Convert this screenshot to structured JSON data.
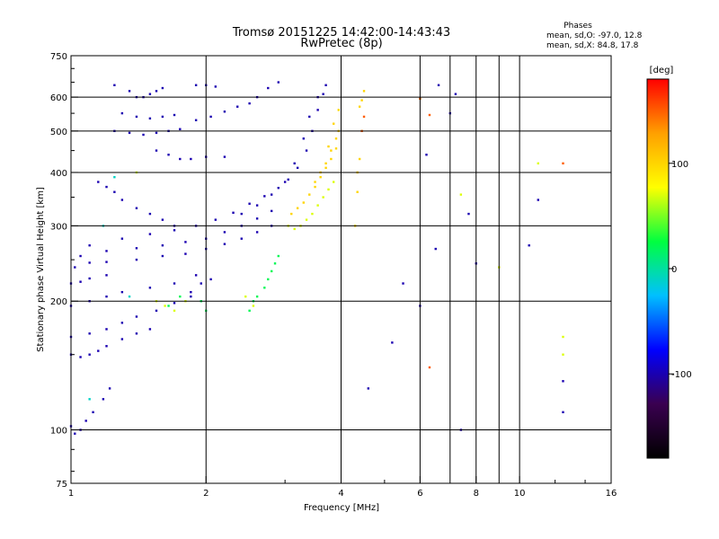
{
  "chart_data": {
    "type": "scatter",
    "title": "Tromsø 20151225 14:42:00-14:43:43",
    "subtitle": "RwPretec (8p)",
    "info": {
      "heading": "Phases",
      "line1": "mean, sd,O:  -97.0, 12.8",
      "line2": "mean, sd,X:  84.8, 17.8"
    },
    "xlabel": "Frequency [MHz]",
    "ylabel": "Stationary phase Virtual Height [km]",
    "x_scale": "log",
    "y_scale": "log",
    "xlim": [
      1,
      16
    ],
    "ylim": [
      75,
      750
    ],
    "x_ticks": [
      {
        "value": 1,
        "label": "1"
      },
      {
        "value": 2,
        "label": "2"
      },
      {
        "value": 4,
        "label": "4"
      },
      {
        "value": 6,
        "label": "6"
      },
      {
        "value": 8,
        "label": "8"
      },
      {
        "value": 10,
        "label": "10"
      },
      {
        "value": 16,
        "label": "16"
      }
    ],
    "x_gridlines": [
      2,
      4,
      6,
      7,
      8,
      9,
      10
    ],
    "y_ticks": [
      {
        "value": 75,
        "label": "75"
      },
      {
        "value": 100,
        "label": "100"
      },
      {
        "value": 200,
        "label": "200"
      },
      {
        "value": 300,
        "label": "300"
      },
      {
        "value": 400,
        "label": "400"
      },
      {
        "value": 500,
        "label": "500"
      },
      {
        "value": 600,
        "label": "600"
      },
      {
        "value": 750,
        "label": "750"
      }
    ],
    "y_gridlines": [
      100,
      200,
      300,
      400,
      500,
      600
    ],
    "grid": true,
    "colorbar": {
      "label": "[deg]",
      "range": [
        -180,
        180
      ],
      "ticks": [
        {
          "value": 100,
          "label": "100"
        },
        {
          "value": 0,
          "label": "0"
        },
        {
          "value": -100,
          "label": "-100"
        }
      ],
      "colors": [
        "#000000",
        "#3a0050",
        "#0000ff",
        "#00c0ff",
        "#00ff40",
        "#ffff00",
        "#ffa000",
        "#ff0000"
      ]
    },
    "series": [
      {
        "phase": -100,
        "points": [
          [
            1.0,
            102
          ],
          [
            1.02,
            98
          ],
          [
            1.05,
            100
          ],
          [
            1.08,
            105
          ],
          [
            1.12,
            110
          ],
          [
            1.18,
            118
          ],
          [
            1.22,
            125
          ],
          [
            1.0,
            150
          ],
          [
            1.05,
            148
          ],
          [
            1.1,
            150
          ],
          [
            1.15,
            153
          ],
          [
            1.2,
            157
          ],
          [
            1.3,
            163
          ],
          [
            1.4,
            168
          ],
          [
            1.5,
            172
          ],
          [
            1.0,
            165
          ],
          [
            1.1,
            168
          ],
          [
            1.2,
            172
          ],
          [
            1.3,
            178
          ],
          [
            1.4,
            184
          ],
          [
            1.55,
            190
          ],
          [
            1.7,
            198
          ],
          [
            1.85,
            205
          ],
          [
            1.0,
            195
          ],
          [
            1.1,
            200
          ],
          [
            1.2,
            205
          ],
          [
            1.3,
            210
          ],
          [
            1.5,
            215
          ],
          [
            1.7,
            220
          ],
          [
            1.9,
            230
          ],
          [
            1.0,
            220
          ],
          [
            1.05,
            222
          ],
          [
            1.1,
            226
          ],
          [
            1.2,
            230
          ],
          [
            1.02,
            240
          ],
          [
            1.1,
            246
          ],
          [
            1.2,
            247
          ],
          [
            1.4,
            250
          ],
          [
            1.6,
            255
          ],
          [
            1.8,
            258
          ],
          [
            2.0,
            265
          ],
          [
            2.2,
            272
          ],
          [
            2.4,
            280
          ],
          [
            2.6,
            290
          ],
          [
            2.8,
            300
          ],
          [
            1.05,
            255
          ],
          [
            1.2,
            262
          ],
          [
            1.4,
            266
          ],
          [
            1.6,
            270
          ],
          [
            1.8,
            275
          ],
          [
            2.0,
            280
          ],
          [
            2.2,
            290
          ],
          [
            2.4,
            300
          ],
          [
            2.6,
            312
          ],
          [
            2.8,
            325
          ],
          [
            1.1,
            270
          ],
          [
            1.3,
            280
          ],
          [
            1.5,
            287
          ],
          [
            1.7,
            293
          ],
          [
            1.9,
            300
          ],
          [
            2.1,
            310
          ],
          [
            2.3,
            322
          ],
          [
            2.5,
            338
          ],
          [
            2.7,
            352
          ],
          [
            2.9,
            368
          ],
          [
            3.05,
            385
          ],
          [
            3.2,
            410
          ],
          [
            3.35,
            450
          ],
          [
            3.45,
            500
          ],
          [
            3.55,
            560
          ],
          [
            3.65,
            610
          ],
          [
            3.7,
            640
          ],
          [
            2.4,
            320
          ],
          [
            2.6,
            335
          ],
          [
            2.8,
            355
          ],
          [
            3.0,
            380
          ],
          [
            3.15,
            420
          ],
          [
            3.3,
            480
          ],
          [
            3.4,
            540
          ],
          [
            3.55,
            600
          ],
          [
            1.15,
            380
          ],
          [
            1.2,
            370
          ],
          [
            1.25,
            360
          ],
          [
            1.3,
            345
          ],
          [
            1.4,
            330
          ],
          [
            1.5,
            320
          ],
          [
            1.6,
            310
          ],
          [
            1.7,
            300
          ],
          [
            1.25,
            500
          ],
          [
            1.35,
            495
          ],
          [
            1.45,
            490
          ],
          [
            1.55,
            495
          ],
          [
            1.65,
            500
          ],
          [
            1.75,
            505
          ],
          [
            1.3,
            550
          ],
          [
            1.4,
            540
          ],
          [
            1.5,
            535
          ],
          [
            1.6,
            540
          ],
          [
            1.7,
            545
          ],
          [
            1.45,
            600
          ],
          [
            1.5,
            610
          ],
          [
            1.55,
            620
          ],
          [
            1.6,
            630
          ],
          [
            1.55,
            450
          ],
          [
            1.65,
            440
          ],
          [
            1.75,
            430
          ],
          [
            1.85,
            430
          ],
          [
            2.0,
            435
          ],
          [
            2.2,
            435
          ],
          [
            1.9,
            640
          ],
          [
            2.0,
            640
          ],
          [
            2.1,
            635
          ],
          [
            1.9,
            530
          ],
          [
            2.05,
            540
          ],
          [
            2.2,
            555
          ],
          [
            2.35,
            570
          ],
          [
            2.5,
            580
          ],
          [
            2.6,
            600
          ],
          [
            2.75,
            630
          ],
          [
            2.9,
            650
          ],
          [
            1.85,
            210
          ],
          [
            1.95,
            220
          ],
          [
            2.05,
            225
          ],
          [
            1.4,
            600
          ],
          [
            1.35,
            620
          ],
          [
            1.25,
            640
          ],
          [
            4.6,
            125
          ],
          [
            5.2,
            160
          ],
          [
            5.5,
            220
          ],
          [
            6.0,
            195
          ],
          [
            6.2,
            440
          ],
          [
            6.5,
            265
          ],
          [
            7.0,
            550
          ],
          [
            7.4,
            100
          ],
          [
            8.0,
            245
          ],
          [
            10.5,
            270
          ],
          [
            11.0,
            345
          ],
          [
            12.5,
            110
          ],
          [
            12.5,
            130
          ],
          [
            6.6,
            640
          ],
          [
            7.2,
            610
          ],
          [
            7.7,
            320
          ]
        ]
      },
      {
        "phase": 20,
        "points": [
          [
            2.5,
            190
          ],
          [
            2.55,
            200
          ],
          [
            2.6,
            205
          ],
          [
            2.7,
            215
          ],
          [
            2.75,
            225
          ],
          [
            2.8,
            235
          ],
          [
            2.85,
            245
          ],
          [
            2.9,
            255
          ],
          [
            1.95,
            200
          ],
          [
            2.0,
            190
          ],
          [
            1.75,
            205
          ],
          [
            1.65,
            195
          ]
        ]
      },
      {
        "phase": 70,
        "points": [
          [
            1.55,
            200
          ],
          [
            1.62,
            195
          ],
          [
            1.7,
            190
          ],
          [
            1.8,
            200
          ],
          [
            2.45,
            205
          ],
          [
            2.55,
            195
          ],
          [
            3.05,
            300
          ],
          [
            3.15,
            295
          ],
          [
            3.25,
            300
          ],
          [
            3.35,
            310
          ],
          [
            3.45,
            320
          ],
          [
            3.55,
            335
          ],
          [
            3.65,
            350
          ],
          [
            3.75,
            365
          ],
          [
            3.85,
            380
          ],
          [
            1.4,
            400
          ],
          [
            11.0,
            420
          ],
          [
            12.5,
            165
          ],
          [
            12.5,
            150
          ],
          [
            7.4,
            355
          ],
          [
            9.0,
            240
          ]
        ]
      },
      {
        "phase": 100,
        "points": [
          [
            3.1,
            320
          ],
          [
            3.2,
            330
          ],
          [
            3.3,
            340
          ],
          [
            3.4,
            355
          ],
          [
            3.5,
            370
          ],
          [
            3.6,
            390
          ],
          [
            3.7,
            410
          ],
          [
            3.8,
            430
          ],
          [
            3.9,
            455
          ],
          [
            3.5,
            380
          ],
          [
            3.6,
            400
          ],
          [
            3.7,
            420
          ],
          [
            3.8,
            450
          ],
          [
            3.9,
            480
          ],
          [
            3.95,
            500
          ],
          [
            4.4,
            570
          ],
          [
            4.45,
            590
          ],
          [
            4.5,
            620
          ],
          [
            4.35,
            360
          ],
          [
            4.3,
            300
          ],
          [
            4.35,
            400
          ],
          [
            4.4,
            430
          ],
          [
            3.75,
            460
          ],
          [
            3.85,
            520
          ],
          [
            3.95,
            560
          ]
        ]
      },
      {
        "phase": 150,
        "points": [
          [
            4.45,
            500
          ],
          [
            4.5,
            540
          ],
          [
            6.3,
            140
          ],
          [
            6.3,
            545
          ],
          [
            12.5,
            420
          ],
          [
            6.0,
            595
          ]
        ]
      },
      {
        "phase": -10,
        "points": [
          [
            1.25,
            390
          ],
          [
            1.18,
            300
          ],
          [
            1.35,
            205
          ],
          [
            1.1,
            118
          ]
        ]
      }
    ]
  }
}
